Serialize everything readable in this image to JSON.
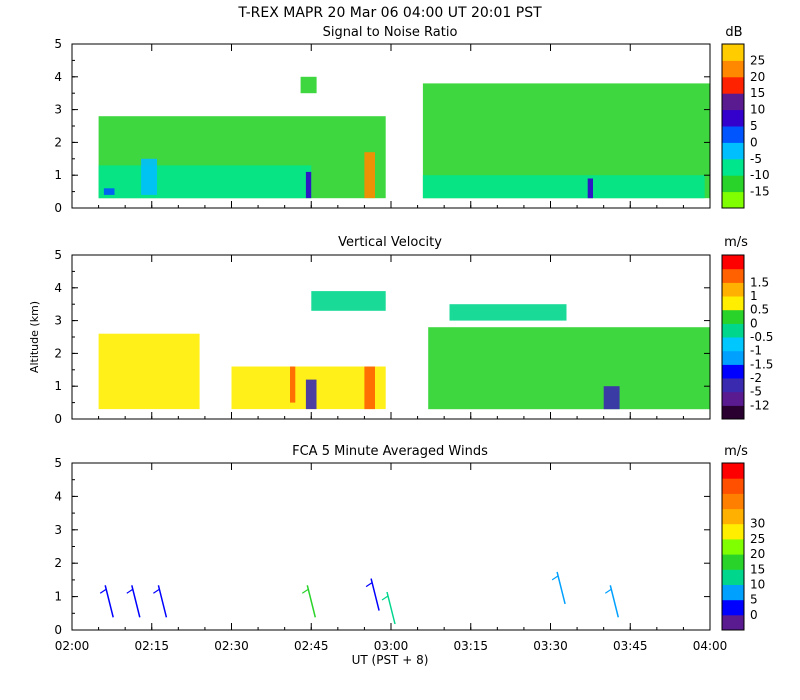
{
  "figure": {
    "title": "T-REX   MAPR 20 Mar 06   04:00 UT   20:01   PST",
    "xlabel": "UT  (PST + 8)"
  },
  "colors": {
    "snr": [
      "#80ff00",
      "#2ad32a",
      "#00e68c",
      "#00bfff",
      "#0055ff",
      "#3300cc",
      "#5a1a90",
      "#ff2200",
      "#ff8800",
      "#ffcc00"
    ],
    "velocity": [
      "#2a0030",
      "#5a1a90",
      "#3a2ab0",
      "#0000ff",
      "#00a0ff",
      "#00c8ff",
      "#00d68c",
      "#2ad32a",
      "#ffee00",
      "#ffb000",
      "#ff6000",
      "#ff0000"
    ],
    "winds": [
      "#5a1a90",
      "#0000ff",
      "#00a0ff",
      "#00d68c",
      "#2ad32a",
      "#80ff00",
      "#ffee00",
      "#ffb000",
      "#ff8000",
      "#ff5000",
      "#ff0000"
    ]
  },
  "chart_data": [
    {
      "type": "heatmap",
      "title": "Signal to Noise Ratio",
      "ylabel": "",
      "units": "dB",
      "xlim": [
        "02:00",
        "04:00"
      ],
      "ylim": [
        0,
        5
      ],
      "x_ticks": [
        "02:00",
        "02:15",
        "02:30",
        "02:45",
        "03:00",
        "03:15",
        "03:30",
        "03:45",
        "04:00"
      ],
      "y_ticks": [
        "0",
        "1",
        "2",
        "3",
        "4",
        "5"
      ],
      "colorbar_ticks": [
        "-15",
        "-10",
        "-5",
        "0",
        "5",
        "10",
        "15",
        "20",
        "25"
      ],
      "data_gap": [
        "03:00",
        "03:06"
      ],
      "regions": [
        {
          "x": [
            "02:05",
            "02:59"
          ],
          "y": [
            0.3,
            2.8
          ],
          "level": -12
        },
        {
          "x": [
            "02:05",
            "02:45"
          ],
          "y": [
            0.3,
            1.3
          ],
          "level": -10
        },
        {
          "x": [
            "02:06",
            "02:08"
          ],
          "y": [
            0.4,
            0.6
          ],
          "level": 0
        },
        {
          "x": [
            "02:13",
            "02:16"
          ],
          "y": [
            0.4,
            1.5
          ],
          "level": -5
        },
        {
          "x": [
            "02:43",
            "02:46"
          ],
          "y": [
            3.5,
            4.0
          ],
          "level": -12
        },
        {
          "x": [
            "02:44",
            "02:45"
          ],
          "y": [
            0.3,
            1.1
          ],
          "level": 5
        },
        {
          "x": [
            "02:55",
            "02:57"
          ],
          "y": [
            0.3,
            1.7
          ],
          "level": 20
        },
        {
          "x": [
            "03:06",
            "03:60"
          ],
          "y": [
            0.3,
            3.8
          ],
          "level": -12
        },
        {
          "x": [
            "03:06",
            "03:59"
          ],
          "y": [
            0.3,
            1.0
          ],
          "level": -10
        },
        {
          "x": [
            "03:37",
            "03:38"
          ],
          "y": [
            0.3,
            0.9
          ],
          "level": 5
        }
      ]
    },
    {
      "type": "heatmap",
      "title": "Vertical Velocity",
      "ylabel": "Altitude (km)",
      "units": "m/s",
      "xlim": [
        "02:00",
        "04:00"
      ],
      "ylim": [
        0,
        5
      ],
      "x_ticks": [
        "02:00",
        "02:15",
        "02:30",
        "02:45",
        "03:00",
        "03:15",
        "03:30",
        "03:45",
        "04:00"
      ],
      "y_ticks": [
        "0",
        "1",
        "2",
        "3",
        "4",
        "5"
      ],
      "colorbar_ticks": [
        "-12",
        "-5",
        "-2",
        "-1.5",
        "-1",
        "-0.5",
        "0",
        "0.5",
        "1",
        "1.5"
      ],
      "regions": [
        {
          "x": [
            "02:05",
            "02:24"
          ],
          "y": [
            0.3,
            2.6
          ],
          "level": 0.5
        },
        {
          "x": [
            "02:30",
            "02:59"
          ],
          "y": [
            0.3,
            1.6
          ],
          "level": 0.5
        },
        {
          "x": [
            "02:45",
            "02:59"
          ],
          "y": [
            3.3,
            3.9
          ],
          "level": -0.5
        },
        {
          "x": [
            "02:44",
            "02:46"
          ],
          "y": [
            0.3,
            1.2
          ],
          "level": -5
        },
        {
          "x": [
            "02:41",
            "02:42"
          ],
          "y": [
            0.5,
            1.6
          ],
          "level": 1.5
        },
        {
          "x": [
            "02:55",
            "02:57"
          ],
          "y": [
            0.3,
            1.6
          ],
          "level": 1.5
        },
        {
          "x": [
            "03:07",
            "03:60"
          ],
          "y": [
            0.3,
            2.8
          ],
          "level": 0
        },
        {
          "x": [
            "03:11",
            "03:33"
          ],
          "y": [
            3.0,
            3.5
          ],
          "level": -0.5
        },
        {
          "x": [
            "03:40",
            "03:43"
          ],
          "y": [
            0.3,
            1.0
          ],
          "level": -5
        }
      ]
    },
    {
      "type": "scatter",
      "title": "FCA 5 Minute Averaged Winds",
      "ylabel": "",
      "units": "m/s",
      "xlim": [
        "02:00",
        "04:00"
      ],
      "ylim": [
        0,
        5
      ],
      "x_ticks": [
        "02:00",
        "02:15",
        "02:30",
        "02:45",
        "03:00",
        "03:15",
        "03:30",
        "03:45",
        "04:00"
      ],
      "y_ticks": [
        "0",
        "1",
        "2",
        "3",
        "4",
        "5"
      ],
      "colorbar_ticks": [
        "0",
        "5",
        "10",
        "15",
        "20",
        "25",
        "30"
      ],
      "wind_barbs": [
        {
          "time": "02:07",
          "altitude": 0.8,
          "speed_level": 3
        },
        {
          "time": "02:12",
          "altitude": 0.8,
          "speed_level": 3
        },
        {
          "time": "02:17",
          "altitude": 0.8,
          "speed_level": 3
        },
        {
          "time": "02:45",
          "altitude": 0.8,
          "speed_level": 18
        },
        {
          "time": "02:57",
          "altitude": 1.0,
          "speed_level": 3
        },
        {
          "time": "03:00",
          "altitude": 0.6,
          "speed_level": 10
        },
        {
          "time": "03:32",
          "altitude": 1.2,
          "speed_level": 5
        },
        {
          "time": "03:42",
          "altitude": 0.8,
          "speed_level": 5
        }
      ]
    }
  ]
}
